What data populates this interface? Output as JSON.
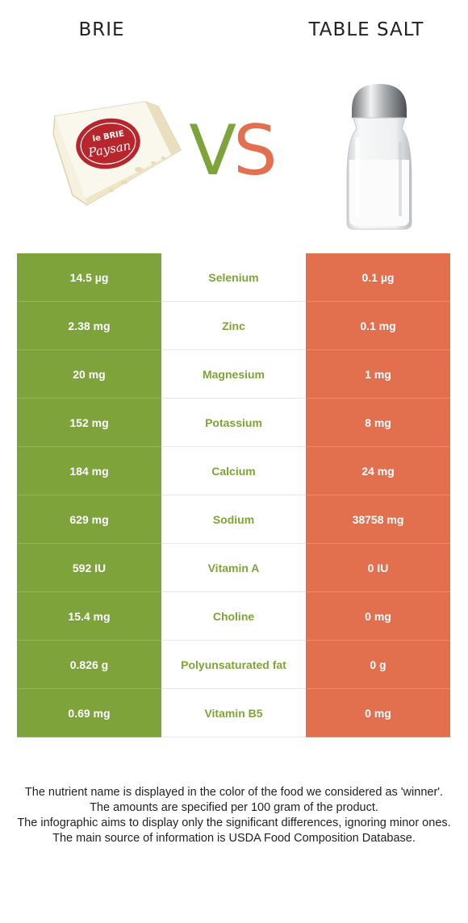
{
  "header": {
    "left_title": "BRIE",
    "right_title": "TABLE SALT",
    "vs_v": "V",
    "vs_s": "S"
  },
  "images": {
    "left": "brie-cheese-wedge-with-le-brie-paysan-label",
    "right": "glass-salt-shaker-with-metal-cap",
    "left_label_line1": "le BRIE",
    "left_label_line2": "Paysan"
  },
  "colors": {
    "left_winner": "#7da33a",
    "right_winner": "#e2704f",
    "background": "#ffffff"
  },
  "chart_data": {
    "type": "table",
    "columns": [
      "BRIE",
      "",
      "TABLE SALT"
    ],
    "rows": [
      {
        "left": "14.5 µg",
        "nutrient": "Selenium",
        "right": "0.1 µg",
        "winner": "left"
      },
      {
        "left": "2.38 mg",
        "nutrient": "Zinc",
        "right": "0.1 mg",
        "winner": "left"
      },
      {
        "left": "20 mg",
        "nutrient": "Magnesium",
        "right": "1 mg",
        "winner": "left"
      },
      {
        "left": "152 mg",
        "nutrient": "Potassium",
        "right": "8 mg",
        "winner": "left"
      },
      {
        "left": "184 mg",
        "nutrient": "Calcium",
        "right": "24 mg",
        "winner": "left"
      },
      {
        "left": "629 mg",
        "nutrient": "Sodium",
        "right": "38758 mg",
        "winner": "left"
      },
      {
        "left": "592 IU",
        "nutrient": "Vitamin A",
        "right": "0 IU",
        "winner": "left"
      },
      {
        "left": "15.4 mg",
        "nutrient": "Choline",
        "right": "0 mg",
        "winner": "left"
      },
      {
        "left": "0.826 g",
        "nutrient": "Polyunsaturated fat",
        "right": "0 g",
        "winner": "left"
      },
      {
        "left": "0.69 mg",
        "nutrient": "Vitamin B5",
        "right": "0 mg",
        "winner": "left"
      }
    ]
  },
  "footnote": [
    "The nutrient name is displayed in the color of the food we considered as 'winner'.",
    "The amounts are specified per 100 gram of the product.",
    "The infographic aims to display only the significant differences, ignoring minor ones.",
    "The main source of information is USDA Food Composition Database."
  ]
}
